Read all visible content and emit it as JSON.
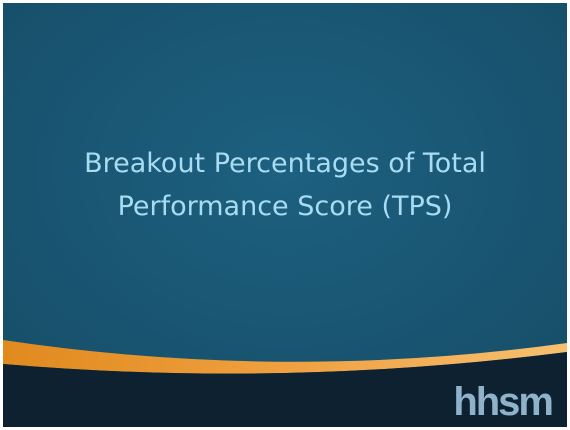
{
  "slide": {
    "title_lines": [
      "Breakout Percentages of Total",
      "Performance Score (TPS)"
    ],
    "logo": "hhsm"
  }
}
